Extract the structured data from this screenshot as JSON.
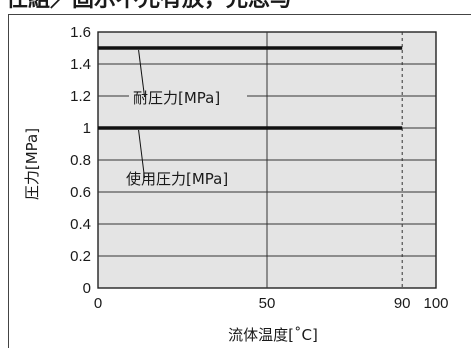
{
  "header": {
    "cropped_title": "仕組／固示不兄有放，兄思与"
  },
  "chart_data": {
    "type": "line",
    "title": "",
    "xlabel": "流体温度[˚C]",
    "ylabel": "圧力[MPa]",
    "xlim": [
      0,
      100
    ],
    "ylim": [
      0,
      1.6
    ],
    "x_ticks": [
      0,
      50,
      90,
      100
    ],
    "y_ticks": [
      0,
      0.2,
      0.4,
      0.6,
      0.8,
      1,
      1.2,
      1.4,
      1.6
    ],
    "x_tick_labels": [
      "0",
      "50",
      "90",
      "100"
    ],
    "y_tick_labels": [
      "0",
      "0.2",
      "0.4",
      "0.6",
      "0.8",
      "1",
      "1.2",
      "1.4",
      "1.6"
    ],
    "grid": {
      "horizontal": true,
      "vertical_at": [
        50
      ]
    },
    "reference_line_x": 90,
    "series": [
      {
        "name": "耐圧力[MPa]",
        "x": [
          0,
          90
        ],
        "y": [
          1.5,
          1.5
        ]
      },
      {
        "name": "使用圧力[MPa]",
        "x": [
          0,
          90
        ],
        "y": [
          1.0,
          1.0
        ]
      }
    ],
    "plot_background": "#e4e4e4",
    "line_color": "#111111"
  }
}
